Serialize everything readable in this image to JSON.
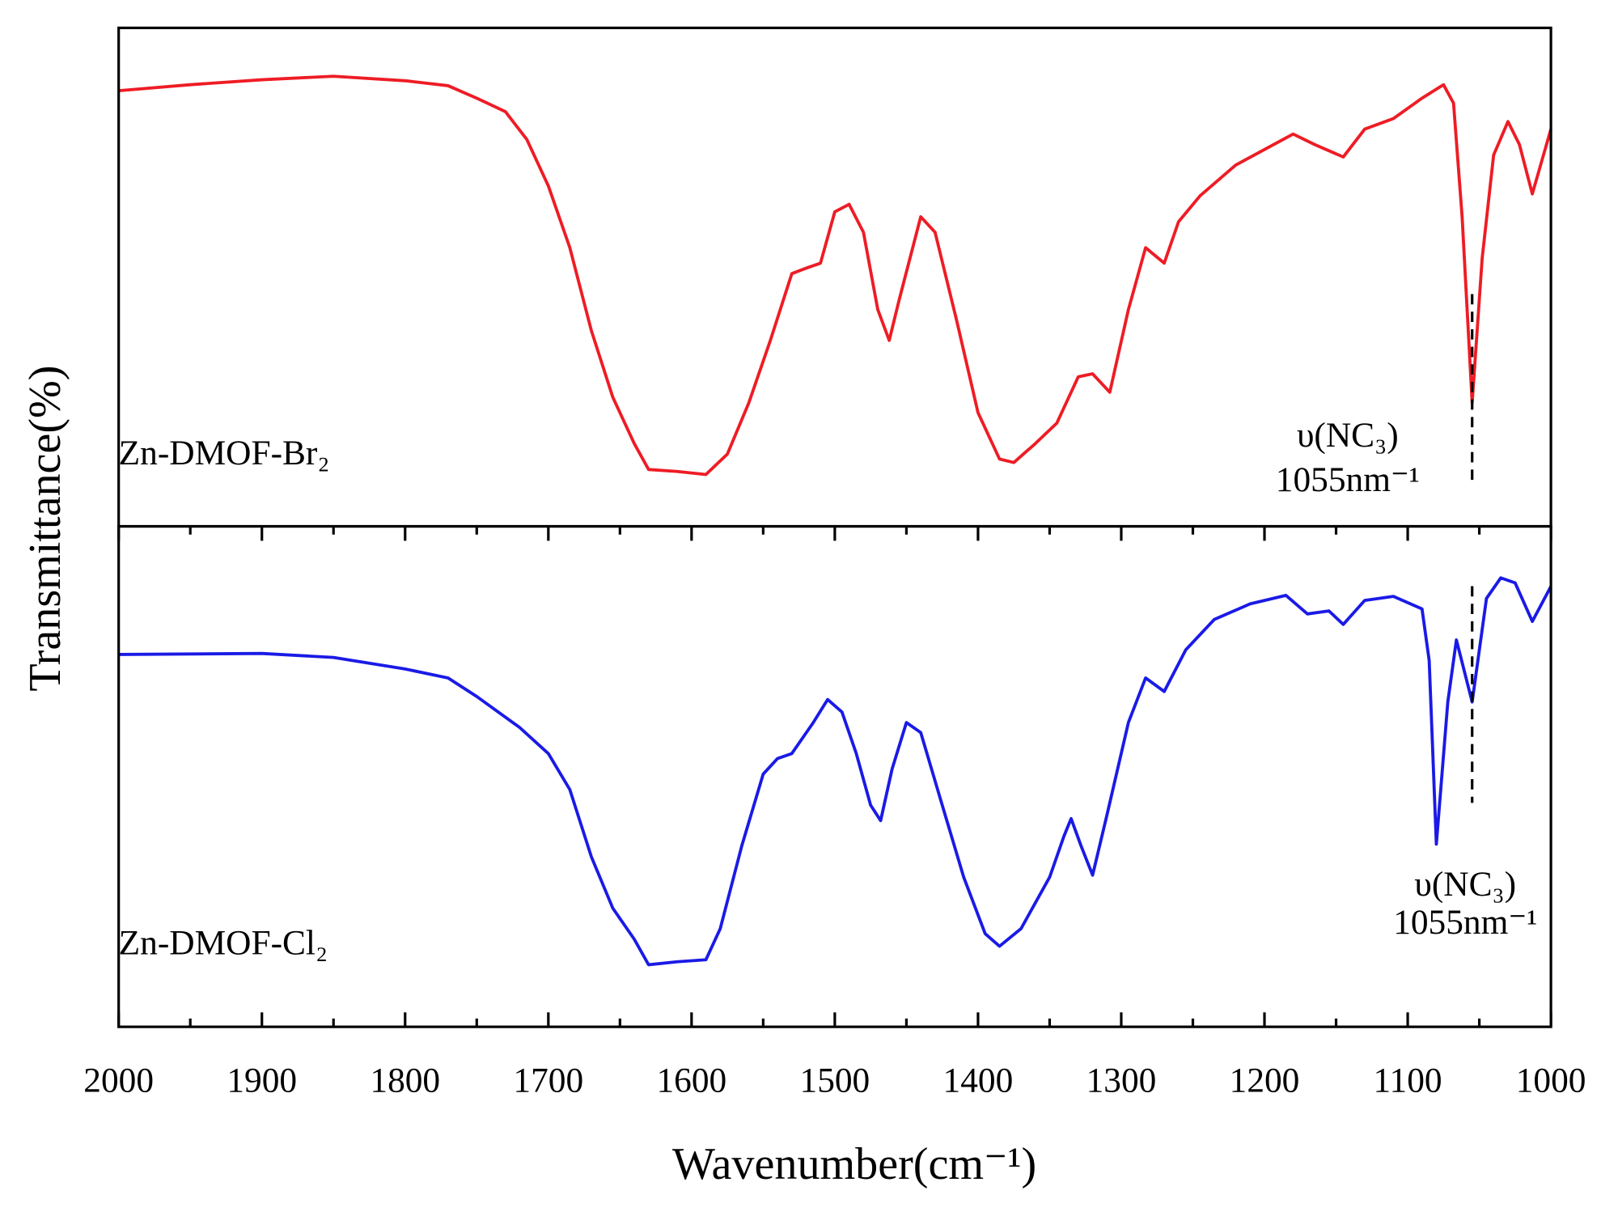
{
  "chart_data": [
    {
      "type": "line",
      "ylabel": "Transmittance(%)",
      "xlim": [
        2000,
        1000
      ],
      "ylim": [
        0,
        100
      ],
      "x": [
        2000,
        1950,
        1900,
        1850,
        1800,
        1770,
        1750,
        1730,
        1715,
        1700,
        1685,
        1670,
        1655,
        1640,
        1630,
        1610,
        1590,
        1575,
        1560,
        1545,
        1530,
        1520,
        1510,
        1500,
        1490,
        1480,
        1470,
        1462,
        1455,
        1440,
        1430,
        1415,
        1400,
        1385,
        1375,
        1360,
        1345,
        1330,
        1320,
        1308,
        1295,
        1283,
        1270,
        1260,
        1245,
        1220,
        1200,
        1180,
        1165,
        1145,
        1130,
        1110,
        1090,
        1075,
        1068,
        1062,
        1055,
        1048,
        1040,
        1030,
        1022,
        1013,
        1000
      ],
      "series": [
        {
          "name": "Zn-DMOF-Br₂",
          "color": "#ee1c25",
          "values": [
            87.4,
            88.6,
            89.6,
            90.3,
            89.4,
            88.4,
            85.9,
            83.2,
            77.6,
            68.3,
            55.9,
            39.3,
            25.9,
            16.6,
            11.4,
            11.0,
            10.4,
            14.5,
            24.8,
            37.3,
            50.7,
            51.8,
            52.8,
            63.1,
            64.6,
            59.0,
            43.5,
            37.3,
            45.5,
            62.1,
            59.0,
            41.4,
            22.8,
            13.5,
            12.8,
            16.6,
            20.7,
            30.0,
            30.6,
            26.9,
            43.5,
            55.9,
            52.8,
            61.1,
            66.3,
            72.5,
            75.6,
            78.7,
            76.6,
            74.1,
            79.7,
            81.8,
            85.9,
            88.6,
            84.9,
            62.1,
            24.8,
            53.8,
            74.5,
            81.2,
            76.6,
            66.7,
            79.7
          ]
        }
      ],
      "annotation": {
        "x": 1055,
        "lines": [
          "υ(NC₃)",
          "1055nm⁻¹"
        ]
      }
    },
    {
      "type": "line",
      "xlabel": "Wavenumber(cm⁻¹)",
      "xlim": [
        2000,
        1000
      ],
      "ylim": [
        0,
        100
      ],
      "xticks": [
        2000,
        1900,
        1800,
        1700,
        1600,
        1500,
        1400,
        1300,
        1200,
        1100,
        1000
      ],
      "xminorticks": [
        1950,
        1850,
        1750,
        1650,
        1550,
        1450,
        1350,
        1250,
        1150,
        1050
      ],
      "x": [
        2000,
        1900,
        1850,
        1800,
        1770,
        1750,
        1720,
        1700,
        1685,
        1670,
        1655,
        1640,
        1630,
        1610,
        1590,
        1580,
        1565,
        1550,
        1540,
        1530,
        1515,
        1505,
        1495,
        1485,
        1475,
        1468,
        1460,
        1450,
        1440,
        1425,
        1410,
        1395,
        1385,
        1370,
        1350,
        1340,
        1335,
        1328,
        1320,
        1310,
        1295,
        1283,
        1270,
        1255,
        1235,
        1210,
        1185,
        1170,
        1155,
        1145,
        1130,
        1110,
        1090,
        1085,
        1080,
        1072,
        1066,
        1055,
        1045,
        1035,
        1025,
        1013,
        1000
      ],
      "series": [
        {
          "name": "Zn-DMOF-Cl₂",
          "color": "#1a1ae6",
          "values": [
            74.4,
            74.6,
            73.8,
            71.5,
            69.7,
            66.0,
            59.8,
            54.6,
            47.4,
            34.0,
            23.7,
            17.5,
            12.4,
            13.0,
            13.4,
            19.6,
            36.1,
            50.5,
            53.6,
            54.6,
            60.8,
            65.4,
            62.9,
            54.6,
            44.3,
            41.2,
            51.5,
            60.8,
            58.8,
            44.3,
            29.9,
            18.6,
            16.1,
            19.6,
            29.9,
            38.1,
            41.6,
            36.1,
            30.3,
            42.3,
            60.8,
            69.7,
            67.0,
            75.3,
            81.4,
            84.5,
            86.2,
            82.5,
            83.1,
            80.4,
            85.2,
            86.0,
            83.5,
            73.2,
            36.5,
            64.9,
            77.3,
            64.9,
            85.6,
            89.7,
            88.7,
            81.0,
            88.0
          ]
        }
      ],
      "annotation": {
        "x": 1055,
        "lines": [
          "υ(NC₃)",
          "1055nm⁻¹"
        ]
      }
    }
  ]
}
